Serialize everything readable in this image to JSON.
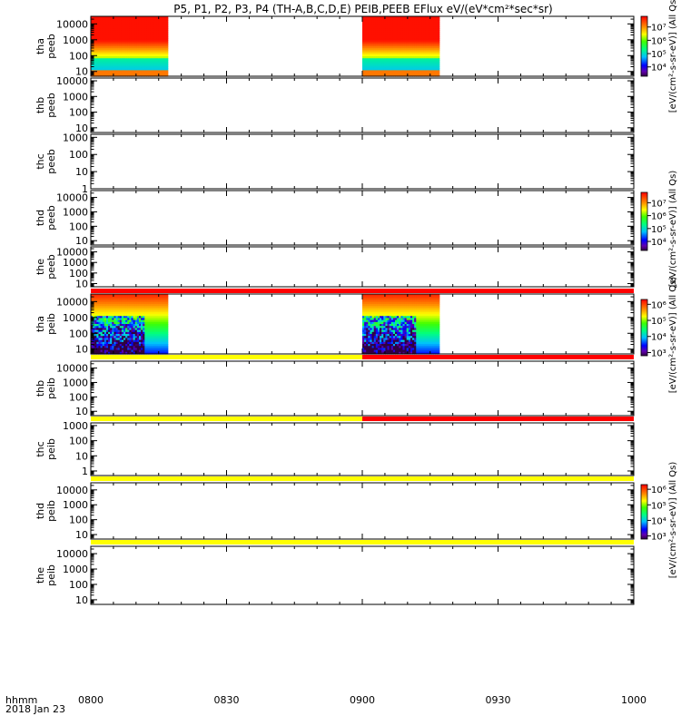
{
  "chart_data": {
    "type": "heatmap",
    "title": "P5, P1, P2, P3, P4 (TH-A,B,C,D,E) PEIB,PEEB EFlux eV/(eV*cm²*sec*sr)",
    "x_axis": {
      "ticks": [
        "0800",
        "0830",
        "0900",
        "0930",
        "1000"
      ],
      "range": [
        "0800",
        "1000"
      ],
      "label_line1": "hhmm",
      "label_line2": "2018 Jan 23"
    },
    "panels": [
      {
        "label_line1": "tha",
        "label_line2": "peeb",
        "y_ticks": [
          "10",
          "100",
          "1000",
          "10000"
        ],
        "y_range": [
          5,
          30000
        ],
        "y_scale": "log",
        "data_intervals": [
          [
            "0800",
            "0817"
          ],
          [
            "0900",
            "0917"
          ]
        ],
        "colorbar": {
          "ticks": [
            "10⁴",
            "10⁵",
            "10⁶",
            "10⁷"
          ],
          "range_log": [
            3.3,
            7.8
          ],
          "label": "[eV/(cm²-s-sr-eV)] (All Qs)"
        },
        "flag_bar": null
      },
      {
        "label_line1": "thb",
        "label_line2": "peeb",
        "y_ticks": [
          "10",
          "100",
          "1000",
          "10000"
        ],
        "y_range": [
          5,
          15000
        ],
        "y_scale": "log",
        "data_intervals": [],
        "colorbar": null,
        "flag_bar": null
      },
      {
        "label_line1": "thc",
        "label_line2": "peeb",
        "y_ticks": [
          "1",
          "10",
          "100",
          "1000"
        ],
        "y_range": [
          1,
          1500
        ],
        "y_scale": "log",
        "data_intervals": [],
        "colorbar": null,
        "flag_bar": null
      },
      {
        "label_line1": "thd",
        "label_line2": "peeb",
        "y_ticks": [
          "10",
          "100",
          "1000",
          "10000"
        ],
        "y_range": [
          5,
          30000
        ],
        "y_scale": "log",
        "data_intervals": [],
        "colorbar": {
          "ticks": [
            "10⁴",
            "10⁵",
            "10⁶",
            "10⁷"
          ],
          "range_log": [
            3.3,
            7.8
          ],
          "label": "[eV/(cm²-s-sr-eV)] (All Qs)"
        },
        "flag_bar": null
      },
      {
        "label_line1": "the",
        "label_line2": "peeb",
        "y_ticks": [
          "10",
          "100",
          "1000",
          "10000"
        ],
        "y_range": [
          5,
          30000
        ],
        "y_scale": "log",
        "data_intervals": [],
        "colorbar": null,
        "flag_bar": {
          "segments": [
            {
              "from": "0800",
              "to": "1000",
              "color": "#ff0000"
            }
          ]
        }
      },
      {
        "label_line1": "tha",
        "label_line2": "peib",
        "y_ticks": [
          "10",
          "100",
          "1000",
          "10000"
        ],
        "y_range": [
          5,
          30000
        ],
        "y_scale": "log",
        "data_intervals": [
          [
            "0800",
            "0817"
          ],
          [
            "0900",
            "0917"
          ]
        ],
        "colorbar": {
          "ticks": [
            "10³",
            "10⁴",
            "10⁵",
            "10⁶"
          ],
          "range_log": [
            2.8,
            6.3
          ],
          "label": "[eV/(cm²-s-sr-eV)] (All Qs)"
        },
        "flag_bar": {
          "segments": [
            {
              "from": "0800",
              "to": "0900",
              "color": "#ffff00"
            },
            {
              "from": "0900",
              "to": "1000",
              "color": "#ff0000"
            }
          ]
        }
      },
      {
        "label_line1": "thb",
        "label_line2": "peib",
        "y_ticks": [
          "10",
          "100",
          "1000",
          "10000"
        ],
        "y_range": [
          5,
          30000
        ],
        "y_scale": "log",
        "data_intervals": [],
        "colorbar": null,
        "flag_bar": {
          "segments": [
            {
              "from": "0800",
              "to": "0900",
              "color": "#ffff00"
            },
            {
              "from": "0900",
              "to": "1000",
              "color": "#ff0000"
            }
          ]
        }
      },
      {
        "label_line1": "thc",
        "label_line2": "peib",
        "y_ticks": [
          "1",
          "10",
          "100",
          "1000"
        ],
        "y_range": [
          0.5,
          1500
        ],
        "y_scale": "log",
        "data_intervals": [],
        "colorbar": null,
        "flag_bar": {
          "segments": [
            {
              "from": "0800",
              "to": "1000",
              "color": "#ffff00"
            }
          ]
        }
      },
      {
        "label_line1": "thd",
        "label_line2": "peib",
        "y_ticks": [
          "10",
          "100",
          "1000",
          "10000"
        ],
        "y_range": [
          5,
          30000
        ],
        "y_scale": "log",
        "data_intervals": [],
        "colorbar": {
          "ticks": [
            "10³",
            "10⁴",
            "10⁵",
            "10⁶"
          ],
          "range_log": [
            2.8,
            6.3
          ],
          "label": "[eV/(cm²-s-sr-eV)] (All Qs)"
        },
        "flag_bar": {
          "segments": [
            {
              "from": "0800",
              "to": "1000",
              "color": "#ffff00"
            }
          ]
        }
      },
      {
        "label_line1": "the",
        "label_line2": "peib",
        "y_ticks": [
          "10",
          "100",
          "1000",
          "10000"
        ],
        "y_range": [
          5,
          30000
        ],
        "y_scale": "log",
        "data_intervals": [],
        "colorbar": null,
        "flag_bar": null
      }
    ]
  }
}
